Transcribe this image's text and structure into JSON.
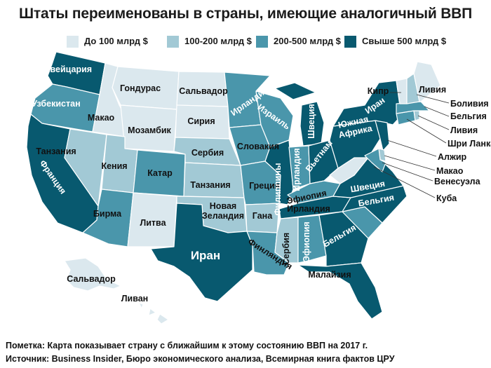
{
  "title": "Штаты переименованы в страны, имеющие аналогичный ВВП",
  "colors": {
    "c1": "#dbe8ee",
    "c2": "#a2c9d5",
    "c3": "#4a96ab",
    "c4": "#08596f"
  },
  "legend": [
    {
      "label": "До 100 млрд $",
      "color": "#dbe8ee"
    },
    {
      "label": "100-200 млрд $",
      "color": "#a2c9d5"
    },
    {
      "label": "200-500 млрд $",
      "color": "#4a96ab"
    },
    {
      "label": "Свыше 500 млрд $",
      "color": "#08596f"
    }
  ],
  "labels": {
    "wa": "Швейцария",
    "or": "Узбекистан",
    "ca": "Франция",
    "id": "Макао",
    "nv": "Танзания",
    "mt": "Гондурас",
    "wy": "Мозамбик",
    "ut": "Кения",
    "co": "Катар",
    "az": "Бирма",
    "nm": "Литва",
    "nd": "Сальвадор",
    "sd": "Сирия",
    "ne": "Сербия",
    "ks": "Танзания",
    "ok1": "Новая",
    "ok2": "Зеландия",
    "tx": "Иран",
    "mn": "Ирландия",
    "ia": "Словакия",
    "mo": "Греция",
    "ar": "Гана",
    "la": "Финляндия",
    "wi": "Израиль",
    "il": "Филиппины",
    "mi": "Швеция",
    "in": "Ирландия",
    "oh": "Вьетнам",
    "ky": "Эфиопия",
    "tn": "Ирландия",
    "ms": "Сербия",
    "al": "Эфиопия",
    "ga": "Бельгия",
    "fl": "Малайзия",
    "va": "Швеция",
    "nc": "Бельгия",
    "pa1": "Южная",
    "pa2": "Африка",
    "ny": "Иран",
    "ak": "Сальвадор",
    "hi": "Ливан",
    "me": "Ливия",
    "vt": "Кипр",
    "nh": "Боливия",
    "ma": "Бельгия",
    "ri": "Ливия",
    "ct": "Шри Ланка",
    "nj": "Алжир",
    "de": "Макао",
    "md": "Венесуэла",
    "dc": "Куба"
  },
  "note": "Пометка: Карта показывает страну с ближайшим к этому состоянию ВВП на 2017 г.",
  "source": "Источник: Business Insider, Бюро экономического анализа, Всемирная книга фактов ЦРУ"
}
